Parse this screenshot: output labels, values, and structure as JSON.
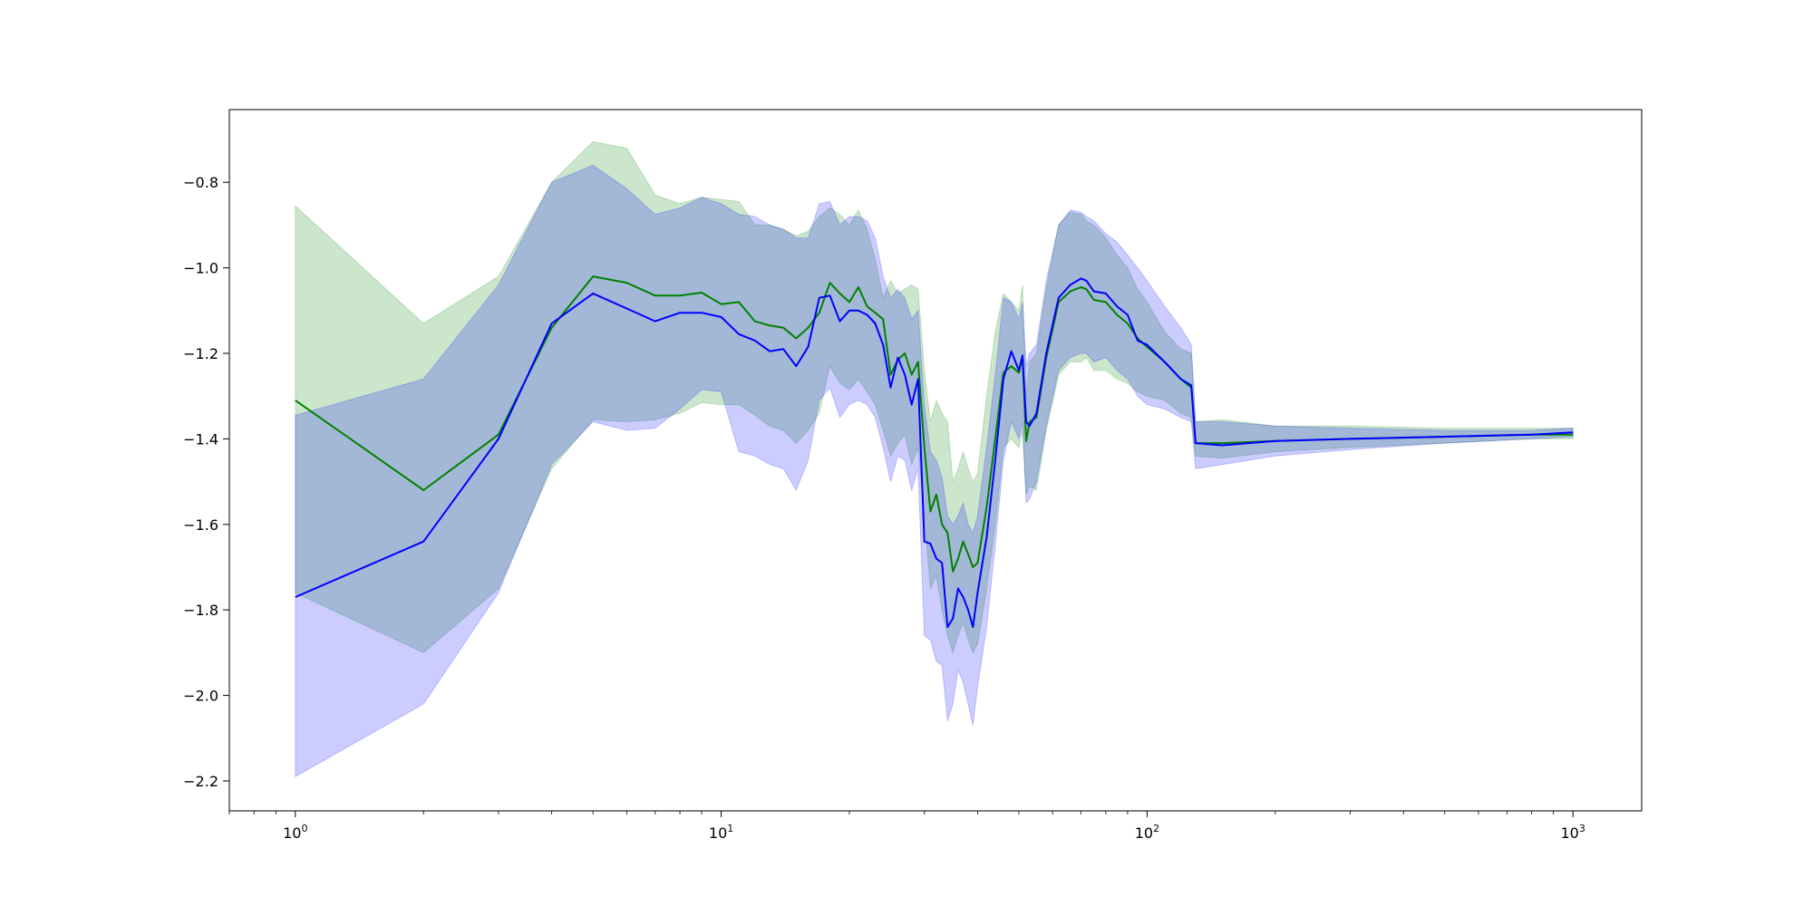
{
  "chart_data": {
    "type": "line",
    "title": "",
    "xlabel": "",
    "ylabel": "",
    "xscale": "log",
    "xlim": [
      0.7,
      1450
    ],
    "ylim": [
      -2.27,
      -0.63
    ],
    "grid": false,
    "legend": null,
    "x_ticks": [
      {
        "value": 1,
        "base": "10",
        "exp": "0"
      },
      {
        "value": 10,
        "base": "10",
        "exp": "1"
      },
      {
        "value": 100,
        "base": "10",
        "exp": "2"
      },
      {
        "value": 1000,
        "base": "10",
        "exp": "3"
      }
    ],
    "y_ticks": [
      {
        "value": -0.8,
        "label": "−0.8"
      },
      {
        "value": -1.0,
        "label": "−1.0"
      },
      {
        "value": -1.2,
        "label": "−1.2"
      },
      {
        "value": -1.4,
        "label": "−1.4"
      },
      {
        "value": -1.6,
        "label": "−1.6"
      },
      {
        "value": -1.8,
        "label": "−1.8"
      },
      {
        "value": -2.0,
        "label": "−2.0"
      },
      {
        "value": -2.2,
        "label": "−2.2"
      }
    ],
    "series": [
      {
        "color": "#008000",
        "band_color": "#008000",
        "band_opacity": 0.2,
        "x": [
          1,
          2,
          3,
          4,
          5,
          6,
          7,
          8,
          9,
          10,
          11,
          12,
          13,
          14,
          15,
          16,
          17,
          18,
          19,
          20,
          21,
          22,
          23,
          24,
          25,
          26,
          27,
          28,
          29,
          30,
          31,
          32,
          33,
          34,
          35,
          36,
          37,
          38,
          39,
          40,
          42,
          44,
          46,
          48,
          50,
          51,
          52,
          53,
          55,
          58,
          62,
          66,
          70,
          72,
          75,
          80,
          85,
          90,
          95,
          100,
          110,
          120,
          127,
          130,
          150,
          200,
          300,
          500,
          800,
          1000
        ],
        "mean": [
          -1.31,
          -1.52,
          -1.39,
          -1.14,
          -1.02,
          -1.035,
          -1.065,
          -1.065,
          -1.058,
          -1.085,
          -1.08,
          -1.125,
          -1.135,
          -1.14,
          -1.165,
          -1.14,
          -1.105,
          -1.035,
          -1.06,
          -1.08,
          -1.045,
          -1.09,
          -1.105,
          -1.12,
          -1.25,
          -1.215,
          -1.2,
          -1.25,
          -1.22,
          -1.42,
          -1.57,
          -1.53,
          -1.6,
          -1.62,
          -1.71,
          -1.68,
          -1.64,
          -1.67,
          -1.7,
          -1.69,
          -1.56,
          -1.4,
          -1.245,
          -1.23,
          -1.245,
          -1.21,
          -1.405,
          -1.36,
          -1.35,
          -1.21,
          -1.08,
          -1.055,
          -1.045,
          -1.05,
          -1.075,
          -1.08,
          -1.11,
          -1.13,
          -1.165,
          -1.185,
          -1.22,
          -1.26,
          -1.28,
          -1.41,
          -1.41,
          -1.405,
          -1.4,
          -1.395,
          -1.39,
          -1.39
        ],
        "upper": [
          -0.855,
          -1.13,
          -1.02,
          -0.8,
          -0.705,
          -0.72,
          -0.83,
          -0.85,
          -0.835,
          -0.84,
          -0.845,
          -0.9,
          -0.9,
          -0.91,
          -0.925,
          -0.915,
          -0.88,
          -0.86,
          -0.875,
          -0.9,
          -0.865,
          -0.91,
          -0.98,
          -1.07,
          -1.03,
          -1.06,
          -1.05,
          -1.04,
          -1.05,
          -1.24,
          -1.36,
          -1.31,
          -1.34,
          -1.36,
          -1.5,
          -1.47,
          -1.43,
          -1.47,
          -1.5,
          -1.48,
          -1.3,
          -1.15,
          -1.06,
          -1.08,
          -1.1,
          -1.04,
          -1.3,
          -1.22,
          -1.2,
          -1.05,
          -0.9,
          -0.87,
          -0.875,
          -0.89,
          -0.9,
          -0.93,
          -0.97,
          -1.0,
          -1.05,
          -1.08,
          -1.15,
          -1.19,
          -1.2,
          -1.36,
          -1.355,
          -1.37,
          -1.37,
          -1.375,
          -1.375,
          -1.375
        ],
        "lower": [
          -1.76,
          -1.9,
          -1.75,
          -1.47,
          -1.355,
          -1.36,
          -1.355,
          -1.34,
          -1.315,
          -1.32,
          -1.32,
          -1.345,
          -1.37,
          -1.38,
          -1.41,
          -1.38,
          -1.34,
          -1.23,
          -1.27,
          -1.285,
          -1.26,
          -1.29,
          -1.32,
          -1.38,
          -1.44,
          -1.41,
          -1.39,
          -1.46,
          -1.42,
          -1.58,
          -1.75,
          -1.72,
          -1.8,
          -1.86,
          -1.9,
          -1.86,
          -1.83,
          -1.87,
          -1.9,
          -1.88,
          -1.75,
          -1.6,
          -1.42,
          -1.4,
          -1.42,
          -1.38,
          -1.53,
          -1.51,
          -1.52,
          -1.38,
          -1.25,
          -1.22,
          -1.22,
          -1.21,
          -1.24,
          -1.24,
          -1.26,
          -1.27,
          -1.29,
          -1.3,
          -1.31,
          -1.34,
          -1.35,
          -1.44,
          -1.445,
          -1.43,
          -1.42,
          -1.41,
          -1.4,
          -1.4
        ]
      },
      {
        "color": "#0000ff",
        "band_color": "#0000ff",
        "band_opacity": 0.2,
        "x": [
          1,
          2,
          3,
          4,
          5,
          6,
          7,
          8,
          9,
          10,
          11,
          12,
          13,
          14,
          15,
          16,
          17,
          18,
          19,
          20,
          21,
          22,
          23,
          24,
          25,
          26,
          27,
          28,
          29,
          30,
          31,
          32,
          33,
          34,
          35,
          36,
          37,
          38,
          39,
          40,
          42,
          44,
          46,
          48,
          50,
          51,
          52,
          53,
          55,
          58,
          62,
          66,
          70,
          72,
          75,
          80,
          85,
          90,
          95,
          100,
          110,
          120,
          127,
          130,
          150,
          200,
          300,
          500,
          800,
          1000
        ],
        "mean": [
          -1.77,
          -1.64,
          -1.4,
          -1.13,
          -1.06,
          -1.095,
          -1.125,
          -1.105,
          -1.105,
          -1.115,
          -1.155,
          -1.17,
          -1.195,
          -1.19,
          -1.23,
          -1.185,
          -1.07,
          -1.065,
          -1.125,
          -1.1,
          -1.1,
          -1.11,
          -1.13,
          -1.18,
          -1.28,
          -1.21,
          -1.25,
          -1.32,
          -1.26,
          -1.64,
          -1.645,
          -1.68,
          -1.69,
          -1.84,
          -1.82,
          -1.75,
          -1.77,
          -1.8,
          -1.84,
          -1.76,
          -1.63,
          -1.45,
          -1.26,
          -1.195,
          -1.24,
          -1.205,
          -1.36,
          -1.37,
          -1.34,
          -1.2,
          -1.07,
          -1.04,
          -1.025,
          -1.03,
          -1.055,
          -1.06,
          -1.09,
          -1.11,
          -1.17,
          -1.18,
          -1.22,
          -1.26,
          -1.275,
          -1.41,
          -1.415,
          -1.405,
          -1.4,
          -1.395,
          -1.39,
          -1.385
        ],
        "upper": [
          -1.345,
          -1.26,
          -1.04,
          -0.8,
          -0.76,
          -0.815,
          -0.875,
          -0.86,
          -0.835,
          -0.85,
          -0.875,
          -0.88,
          -0.9,
          -0.91,
          -0.93,
          -0.93,
          -0.85,
          -0.845,
          -0.9,
          -0.88,
          -0.88,
          -0.89,
          -0.93,
          -1.02,
          -1.07,
          -1.05,
          -1.07,
          -1.12,
          -1.1,
          -1.32,
          -1.43,
          -1.45,
          -1.49,
          -1.58,
          -1.6,
          -1.58,
          -1.55,
          -1.6,
          -1.62,
          -1.58,
          -1.42,
          -1.25,
          -1.07,
          -1.08,
          -1.12,
          -1.08,
          -1.23,
          -1.2,
          -1.18,
          -1.03,
          -0.9,
          -0.865,
          -0.87,
          -0.88,
          -0.89,
          -0.92,
          -0.94,
          -0.97,
          -1.0,
          -1.03,
          -1.09,
          -1.14,
          -1.18,
          -1.36,
          -1.36,
          -1.37,
          -1.375,
          -1.38,
          -1.38,
          -1.375
        ],
        "lower": [
          -2.19,
          -2.02,
          -1.76,
          -1.46,
          -1.36,
          -1.38,
          -1.375,
          -1.33,
          -1.285,
          -1.29,
          -1.43,
          -1.44,
          -1.46,
          -1.47,
          -1.52,
          -1.45,
          -1.31,
          -1.28,
          -1.35,
          -1.32,
          -1.31,
          -1.32,
          -1.35,
          -1.42,
          -1.5,
          -1.44,
          -1.45,
          -1.52,
          -1.47,
          -1.86,
          -1.87,
          -1.92,
          -1.93,
          -2.06,
          -2.02,
          -1.94,
          -1.97,
          -2.02,
          -2.07,
          -1.98,
          -1.84,
          -1.65,
          -1.45,
          -1.36,
          -1.4,
          -1.36,
          -1.55,
          -1.54,
          -1.5,
          -1.37,
          -1.24,
          -1.21,
          -1.2,
          -1.2,
          -1.22,
          -1.21,
          -1.24,
          -1.26,
          -1.3,
          -1.32,
          -1.33,
          -1.35,
          -1.36,
          -1.47,
          -1.46,
          -1.44,
          -1.425,
          -1.41,
          -1.4,
          -1.395
        ]
      }
    ]
  }
}
